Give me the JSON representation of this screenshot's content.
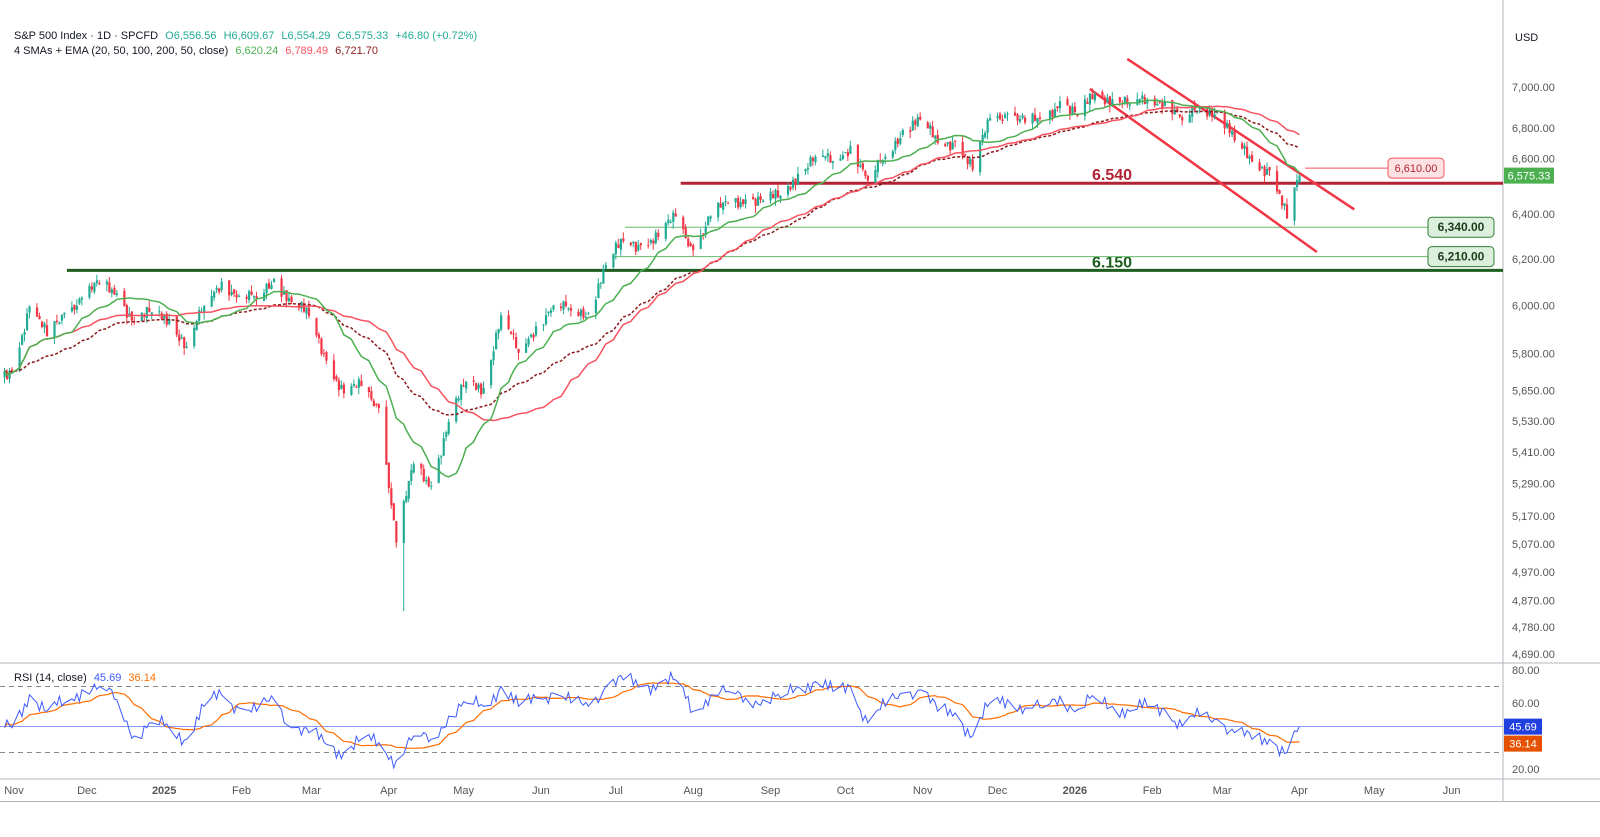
{
  "header": {
    "symbol": "S&P 500 Index · 1D · SPCFD",
    "open": "O6,556.56",
    "high": "H6,609.67",
    "low": "L6,554.29",
    "close": "C6,575.33",
    "change": "+46.80 (+0.72%)",
    "indicator": "4 SMAs + EMA (20, 50, 100, 200, 50, close)",
    "sma20": "6,620.24",
    "sma50": "6,789.49",
    "ema50": "6,721.70",
    "currency": "USD"
  },
  "rsi_legend": {
    "label": "RSI (14, close)",
    "rsi": "45.69",
    "ma": "36.14"
  },
  "colors": {
    "up": "#22ab94",
    "down": "#f23645",
    "sma20": "#4caf50",
    "sma50": "#f7525f",
    "ema50": "#8b1a1a",
    "rsi": "#3d5afe",
    "rsi_ma": "#ff6d00",
    "support": "#1e5e1e",
    "resistance": "#b22234"
  },
  "chart_data": [
    {
      "type": "candlestick",
      "scale": "log",
      "ylim": [
        4650,
        7150
      ],
      "price_ticks": [
        7000,
        6800,
        6600,
        6400,
        6200,
        6000,
        5800,
        5650,
        5530,
        5410,
        5290,
        5170,
        5070,
        4970,
        4870,
        4780,
        4690
      ],
      "price_tick_labels": [
        "7,000.00",
        "6,800.00",
        "6,600.00",
        "6,400.00",
        "6,200.00",
        "6,000.00",
        "5,800.00",
        "5,650.00",
        "5,530.00",
        "5,410.00",
        "5,290.00",
        "5,170.00",
        "5,070.00",
        "4,970.00",
        "4,870.00",
        "4,780.00",
        "4,690.00"
      ],
      "x_range": [
        "2024-11-01",
        "2026-06-20"
      ],
      "time_ticks": [
        {
          "date": "2024-11-01",
          "label": "Nov"
        },
        {
          "date": "2024-12-01",
          "label": "Dec"
        },
        {
          "date": "2025-01-01",
          "label": "2025",
          "bold": true
        },
        {
          "date": "2025-02-01",
          "label": "Feb"
        },
        {
          "date": "2025-03-01",
          "label": "Mar"
        },
        {
          "date": "2025-04-01",
          "label": "Apr"
        },
        {
          "date": "2025-05-01",
          "label": "May"
        },
        {
          "date": "2025-06-01",
          "label": "Jun"
        },
        {
          "date": "2025-07-01",
          "label": "Jul"
        },
        {
          "date": "2025-08-01",
          "label": "Aug"
        },
        {
          "date": "2025-09-01",
          "label": "Sep"
        },
        {
          "date": "2025-10-01",
          "label": "Oct"
        },
        {
          "date": "2025-11-01",
          "label": "Nov"
        },
        {
          "date": "2025-12-01",
          "label": "Dec"
        },
        {
          "date": "2026-01-01",
          "label": "2026",
          "bold": true
        },
        {
          "date": "2026-02-01",
          "label": "Feb"
        },
        {
          "date": "2026-03-01",
          "label": "Mar"
        },
        {
          "date": "2026-04-01",
          "label": "Apr"
        },
        {
          "date": "2026-05-01",
          "label": "May"
        },
        {
          "date": "2026-06-01",
          "label": "Jun"
        }
      ],
      "weekly_closes": [
        [
          "2024-11-01",
          5729
        ],
        [
          "2024-11-08",
          5995
        ],
        [
          "2024-11-15",
          5870
        ],
        [
          "2024-11-22",
          5969
        ],
        [
          "2024-11-29",
          6032
        ],
        [
          "2024-12-06",
          6090
        ],
        [
          "2024-12-13",
          6051
        ],
        [
          "2024-12-20",
          5930
        ],
        [
          "2024-12-27",
          5970
        ],
        [
          "2025-01-03",
          5942
        ],
        [
          "2025-01-10",
          5827
        ],
        [
          "2025-01-17",
          5997
        ],
        [
          "2025-01-24",
          6101
        ],
        [
          "2025-01-31",
          6040
        ],
        [
          "2025-02-07",
          6026
        ],
        [
          "2025-02-14",
          6114
        ],
        [
          "2025-02-21",
          6013
        ],
        [
          "2025-02-28",
          5955
        ],
        [
          "2025-03-07",
          5770
        ],
        [
          "2025-03-14",
          5638
        ],
        [
          "2025-03-21",
          5667
        ],
        [
          "2025-03-28",
          5580
        ],
        [
          "2025-04-04",
          5074
        ],
        [
          "2025-04-11",
          5363
        ],
        [
          "2025-04-18",
          5282
        ],
        [
          "2025-04-25",
          5525
        ],
        [
          "2025-05-02",
          5686
        ],
        [
          "2025-05-09",
          5660
        ],
        [
          "2025-05-16",
          5958
        ],
        [
          "2025-05-23",
          5802
        ],
        [
          "2025-05-30",
          5912
        ],
        [
          "2025-06-06",
          6000
        ],
        [
          "2025-06-13",
          5977
        ],
        [
          "2025-06-20",
          5967
        ],
        [
          "2025-06-27",
          6173
        ],
        [
          "2025-07-04",
          6279
        ],
        [
          "2025-07-11",
          6260
        ],
        [
          "2025-07-18",
          6297
        ],
        [
          "2025-07-25",
          6388
        ],
        [
          "2025-08-01",
          6238
        ],
        [
          "2025-08-08",
          6389
        ],
        [
          "2025-08-15",
          6449
        ],
        [
          "2025-08-22",
          6466
        ],
        [
          "2025-08-29",
          6460
        ],
        [
          "2025-09-05",
          6481
        ],
        [
          "2025-09-12",
          6584
        ],
        [
          "2025-09-19",
          6664
        ],
        [
          "2025-09-26",
          6643
        ],
        [
          "2025-10-03",
          6715
        ],
        [
          "2025-10-10",
          6552
        ],
        [
          "2025-10-17",
          6664
        ],
        [
          "2025-10-24",
          6791
        ],
        [
          "2025-10-31",
          6840
        ],
        [
          "2025-11-07",
          6728
        ],
        [
          "2025-11-14",
          6734
        ],
        [
          "2025-11-21",
          6603
        ],
        [
          "2025-11-28",
          6849
        ],
        [
          "2025-12-05",
          6870
        ],
        [
          "2025-12-12",
          6827
        ],
        [
          "2025-12-19",
          6834
        ],
        [
          "2025-12-26",
          6930
        ],
        [
          "2026-01-02",
          6858
        ],
        [
          "2026-01-09",
          6966
        ],
        [
          "2026-01-16",
          6940
        ],
        [
          "2026-01-23",
          6915
        ],
        [
          "2026-01-30",
          6939
        ],
        [
          "2026-02-06",
          6932
        ],
        [
          "2026-02-13",
          6836
        ],
        [
          "2026-02-20",
          6900
        ],
        [
          "2026-02-27",
          6880
        ],
        [
          "2026-03-06",
          6740
        ],
        [
          "2026-03-13",
          6640
        ],
        [
          "2026-03-20",
          6600
        ],
        [
          "2026-03-27",
          6380
        ],
        [
          "2026-04-01",
          6575.33
        ]
      ],
      "series": [
        {
          "name": "SMA 20",
          "value": 6620.24
        },
        {
          "name": "SMA 50",
          "value": 6789.49
        },
        {
          "name": "EMA 50",
          "value": 6721.7
        }
      ],
      "annotations": {
        "resistance": {
          "value": 6540,
          "label": "6.540",
          "from": "2025-07-27"
        },
        "support": {
          "value": 6150,
          "label": "6.150",
          "from": "2024-11-23"
        },
        "levels": [
          {
            "value": 6610,
            "label": "6,610.00",
            "kind": "resistance-minor"
          },
          {
            "value": 6340,
            "label": "6,340.00",
            "kind": "support-minor"
          },
          {
            "value": 6210,
            "label": "6,210.00",
            "kind": "support-minor"
          }
        ],
        "channel": {
          "upper": [
            [
              "2026-01-22",
              7140
            ],
            [
              "2026-04-23",
              6420
            ]
          ],
          "lower": [
            [
              "2026-01-07",
              6990
            ],
            [
              "2026-04-08",
              6230
            ]
          ]
        },
        "last_price_label": "6,575.33"
      }
    },
    {
      "type": "line",
      "title": "RSI (14, close)",
      "ylim": [
        15,
        84
      ],
      "ticks": [
        80,
        60,
        20
      ],
      "tick_labels": [
        "80.00",
        "60.00",
        "20.00"
      ],
      "bands": [
        70,
        30
      ],
      "weekly_rsi": [
        45,
        65,
        55,
        60,
        68,
        70,
        62,
        40,
        48,
        45,
        38,
        58,
        65,
        57,
        55,
        62,
        45,
        42,
        35,
        30,
        38,
        36,
        25,
        40,
        38,
        52,
        60,
        58,
        70,
        58,
        63,
        66,
        60,
        58,
        70,
        74,
        70,
        72,
        74,
        55,
        65,
        67,
        63,
        62,
        63,
        70,
        73,
        67,
        70,
        48,
        58,
        66,
        68,
        55,
        54,
        40,
        60,
        62,
        57,
        57,
        64,
        56,
        63,
        58,
        55,
        58,
        56,
        46,
        52,
        50,
        42,
        38,
        38,
        30,
        45.69
      ],
      "last_rsi": "45.69",
      "last_ma": "36.14"
    }
  ]
}
